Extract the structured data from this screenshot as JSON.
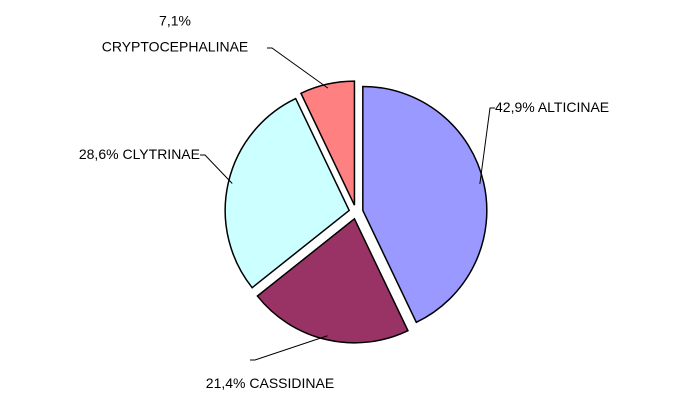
{
  "chart_data": {
    "type": "pie",
    "categories": [
      "ALTICINAE",
      "CASSIDINAE",
      "CLYTRINAE",
      "CRYPTOCEPHALINAE"
    ],
    "values": [
      42.9,
      21.4,
      28.6,
      7.1
    ],
    "value_labels": [
      "42,9%",
      "21,4%",
      "28,6%",
      "7,1%"
    ],
    "colors": [
      "#9999ff",
      "#993366",
      "#ccffff",
      "#ff8080"
    ]
  }
}
